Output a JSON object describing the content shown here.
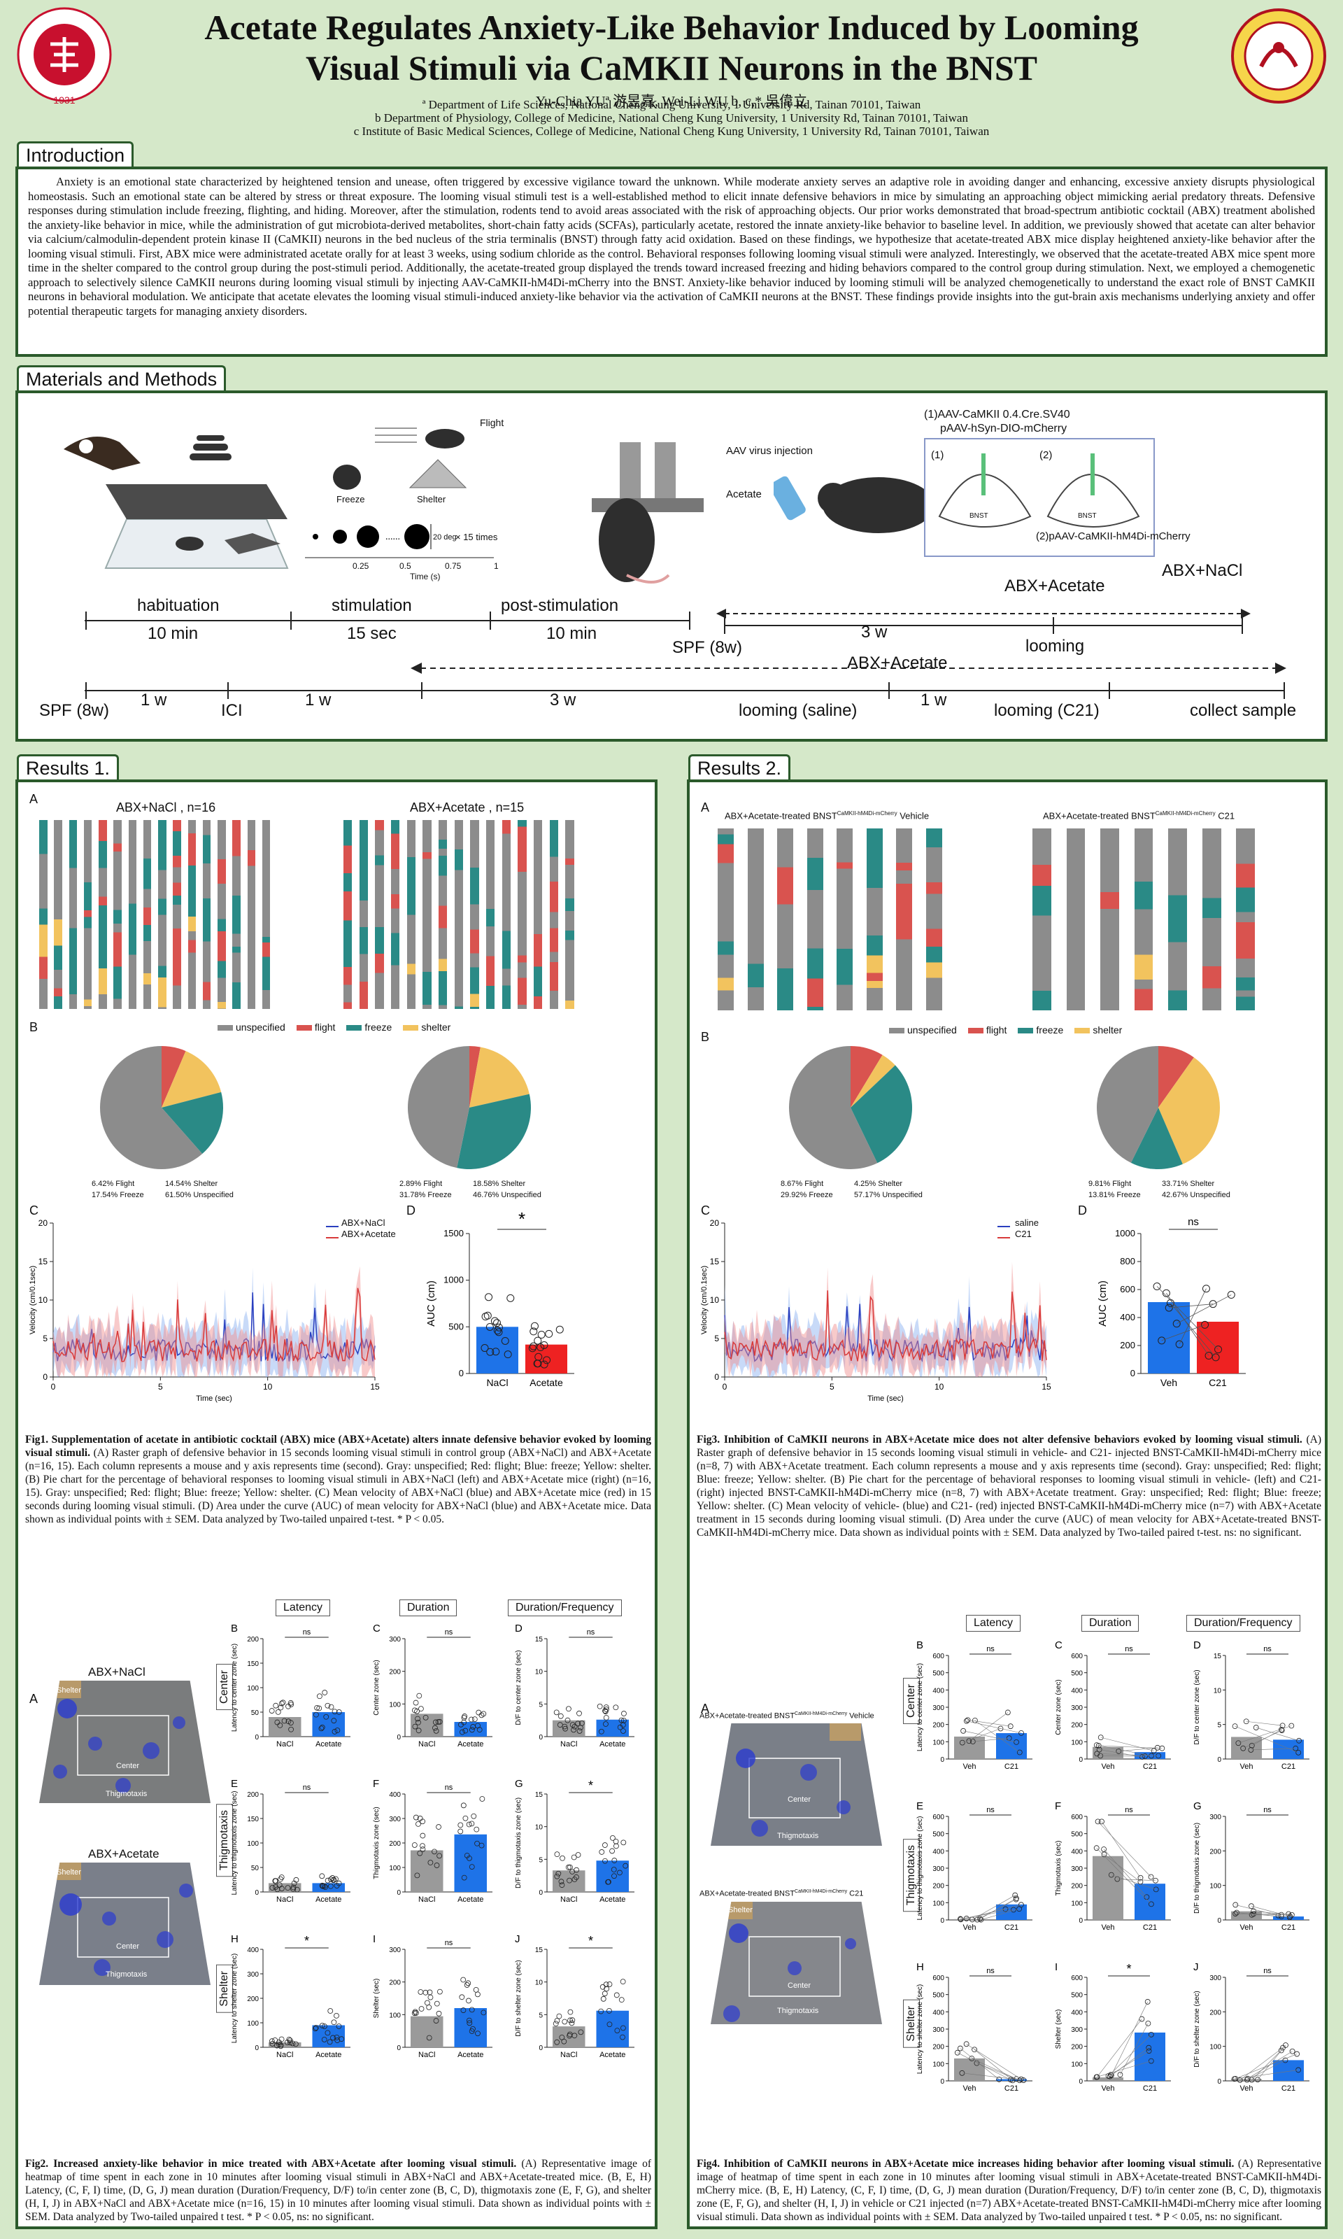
{
  "header": {
    "title_line1": "Acetate Regulates Anxiety-Like Behavior Induced by Looming",
    "title_line2": "Visual Stimuli via CaMKII Neurons in the BNST",
    "authors": "Yu-Chia YUª 游昱嘉, Wei-Li WU b, c,* 吳偉立",
    "affiliations": [
      "ª Department of Life Sciences, National Cheng Kung University, 1 University Rd, Tainan 70101, Taiwan",
      "b Department of Physiology, College of Medicine, National Cheng Kung University, 1 University Rd, Tainan 70101, Taiwan",
      "c Institute of Basic Medical Sciences, College of Medicine, National Cheng Kung University, 1 University Rd, Tainan 70101, Taiwan"
    ],
    "logo_left_text": "NATIONAL CHENG KUNG UNIVERSITY 1931",
    "logo_right_text": "COLLEGE OF MEDICINE 1983"
  },
  "intro": {
    "heading": "Introduction",
    "body": "Anxiety is an emotional state characterized by heightened tension and unease, often triggered by excessive vigilance toward the unknown. While moderate anxiety serves an adaptive role in avoiding danger and enhancing, excessive anxiety disrupts physiological homeostasis. Such an emotional state can be altered by stress or threat exposure. The looming visual stimuli test is a well-established method to elicit innate defensive behaviors in mice by simulating an approaching object mimicking aerial predatory threats. Defensive responses during stimulation include freezing, flighting, and hiding. Moreover, after the stimulation, rodents tend to avoid areas associated with the risk of approaching objects. Our prior works demonstrated that broad-spectrum antibiotic cocktail (ABX) treatment abolished the anxiety-like behavior in mice, while the administration of gut microbiota-derived metabolites, short-chain fatty acids (SCFAs), particularly acetate, restored the innate anxiety-like behavior to baseline level. In addition, we previously showed that acetate can alter behavior via calcium/calmodulin-dependent protein kinase II (CaMKII) neurons in the bed nucleus of the stria terminalis (BNST) through fatty acid oxidation. Based on these findings, we hypothesize that acetate-treated ABX mice display heightened anxiety-like behavior after the looming visual stimuli. First, ABX mice were administrated acetate orally for at least 3 weeks, using sodium chloride as the control. Behavioral responses following looming visual stimuli were analyzed. Interestingly, we observed that the acetate-treated ABX mice spent more time in the shelter compared to the control group during the post-stimuli period. Additionally, the acetate-treated group displayed the trends toward increased freezing and hiding behaviors compared to the control group during stimulation. Next, we employed a chemogenetic approach to selectively silence CaMKII neurons during looming visual stimuli by injecting AAV-CaMKII-hM4Di-mCherry into the BNST. Anxiety-like behavior induced by looming stimuli will be analyzed chemogenetically to understand the exact role of BNST CaMKII neurons in behavioral modulation. We anticipate that acetate elevates the looming visual stimuli-induced anxiety-like behavior via the activation of CaMKII neurons at the BNST. These findings provide insights into the gut-brain axis mechanisms underlying anxiety and offer potential therapeutic targets for managing anxiety disorders."
  },
  "methods": {
    "heading": "Materials and Methods",
    "flight": "Flight",
    "freeze": "Freeze",
    "shelter": "Shelter",
    "times": "× 15 times",
    "size": "20 deg",
    "time_axis": "Time (s)",
    "ticks": [
      "0.25",
      "0.5",
      "0.75",
      "1"
    ],
    "virus1": "(1)AAV-CaMKII 0.4.Cre.SV40",
    "virus1b": "pAAV-hSyn-DIO-mCherry",
    "virus2": "(2)pAAV-CaMKII-hM4Di-mCherry",
    "aav": "AAV virus injection",
    "acetate": "Acetate",
    "one": "(1)",
    "two": "(2)",
    "bnst": "BNST",
    "habituation": "habituation",
    "habituation_t": "10 min",
    "stimulation": "stimulation",
    "stimulation_t": "15 sec",
    "post": "post-stimulation",
    "post_t": "10 min",
    "abx_acetate": "ABX+Acetate",
    "abx_nacl": "ABX+NaCl",
    "spf": "SPF (8w)",
    "three_w": "3 w",
    "looming": "looming",
    "spf2": "SPF (8w)",
    "w1": "1 w",
    "ici": "ICI",
    "w1b": "1 w",
    "w3b": "3 w",
    "abx_acetate2": "ABX+Acetate",
    "looming_saline": "looming (saline)",
    "w1c": "1 w",
    "looming_c21": "looming (C21)",
    "collect": "collect sample"
  },
  "results1": {
    "heading": "Results 1.",
    "A": "A",
    "B": "B",
    "C": "C",
    "D": "D",
    "group1": "ABX+NaCl , n=16",
    "group2": "ABX+Acetate , n=15",
    "legend": [
      "unspecified",
      "flight",
      "freeze",
      "shelter"
    ],
    "pie1": {
      "flight": "6.42% Flight",
      "shelter": "14.54% Shelter",
      "freeze": "17.54% Freeze",
      "unspecified": "61.50% Unspecified"
    },
    "pie2": {
      "flight": "2.89% Flight",
      "shelter": "18.58% Shelter",
      "freeze": "31.78% Freeze",
      "unspecified": "46.76% Unspecified"
    },
    "vel_legend1": "ABX+NaCl",
    "vel_legend2": "ABX+Acetate",
    "vel_ylabel": "Velocity (cm/0.1sec)",
    "vel_xlabel": "Time (sec)",
    "vel_yticks": [
      "0",
      "5",
      "10",
      "15",
      "20"
    ],
    "vel_xticks": [
      "0",
      "5",
      "10",
      "15"
    ],
    "auc_ylabel": "AUC (cm)",
    "auc_yticks": [
      "0",
      "500",
      "1000",
      "1500"
    ],
    "auc_x": [
      "NaCl",
      "Acetate"
    ],
    "auc_sig": "*",
    "fig1_caption_bold": "Fig1. Supplementation of acetate in antibiotic cocktail (ABX) mice (ABX+Acetate) alters innate defensive behavior evoked by looming visual stimuli.",
    "fig1_caption": "(A) Raster graph of defensive behavior in 15 seconds looming visual stimuli in control group (ABX+NaCl) and ABX+Acetate (n=16, 15). Each column represents a mouse and y axis represents time (second). Gray: unspecified; Red: flight; Blue: freeze; Yellow: shelter. (B) Pie chart for the percentage of behavioral responses to looming visual stimuli in ABX+NaCl (left) and ABX+Acetate mice (right) (n=16, 15). Gray: unspecified; Red: flight; Blue: freeze; Yellow: shelter. (C) Mean velocity of ABX+NaCl (blue) and ABX+Acetate mice (red) in 15 seconds during looming visual stimuli. (D) Area under the curve (AUC) of mean velocity for ABX+NaCl (blue) and ABX+Acetate mice. Data shown as individual points with ± SEM. Data analyzed by Two-tailed unpaired t-test. * P < 0.05.",
    "fig2_A": "A",
    "heat1": "ABX+NaCl",
    "heat2": "ABX+Acetate",
    "zone_shelter": "Shelter",
    "zone_center": "Center",
    "zone_thig": "Thigmotaxis",
    "col_latency": "Latency",
    "col_duration": "Duration",
    "col_df": "Duration/Frequency",
    "row_center": "Center",
    "row_thig": "Thigmotaxis",
    "row_shelter": "Shelter",
    "fig2_caption_bold": "Fig2. Increased anxiety-like behavior in mice treated with ABX+Acetate after looming visual stimuli.",
    "fig2_caption": "(A) Representative image of heatmap of time spent in each zone in 10 minutes after looming visual stimuli in ABX+NaCl and ABX+Acetate-treated mice. (B, E, H) Latency, (C, F, I) time, (D, G, J) mean duration (Duration/Frequency, D/F) to/in center zone (B, C, D), thigmotaxis zone (E, F, G), and shelter (H, I, J) in ABX+NaCl and ABX+Acetate mice (n=16, 15) in 10 minutes after looming visual stimuli. Data shown as individual points with ± SEM. Data analyzed by Two-tailed unpaired t test. * P < 0.05, ns: no significant."
  },
  "fig2_panels": [
    {
      "letter": "B",
      "ylabel": "Latency to center zone (sec)",
      "yticks": [
        "0",
        "50",
        "100",
        "150",
        "200"
      ],
      "sig": "ns",
      "x": [
        "NaCl",
        "Acetate"
      ],
      "values": [
        40,
        50
      ]
    },
    {
      "letter": "C",
      "ylabel": "Center zone (sec)",
      "yticks": [
        "0",
        "100",
        "200",
        "300"
      ],
      "sig": "ns",
      "x": [
        "NaCl",
        "Acetate"
      ],
      "values": [
        70,
        45
      ]
    },
    {
      "letter": "D",
      "ylabel": "D/F to center zone (sec)",
      "yticks": [
        "0",
        "5",
        "10",
        "15"
      ],
      "sig": "ns",
      "x": [
        "NaCl",
        "Acetate"
      ],
      "values": [
        2.5,
        2.6
      ]
    },
    {
      "letter": "E",
      "ylabel": "Latency to thigmotaxis zone (sec)",
      "yticks": [
        "0",
        "50",
        "100",
        "150",
        "200"
      ],
      "sig": "ns",
      "x": [
        "NaCl",
        "Acetate"
      ],
      "values": [
        18,
        18
      ]
    },
    {
      "letter": "F",
      "ylabel": "Thigmotaxis zone (sec)",
      "yticks": [
        "0",
        "100",
        "200",
        "300",
        "400"
      ],
      "sig": "ns",
      "x": [
        "NaCl",
        "Acetate"
      ],
      "values": [
        170,
        235
      ]
    },
    {
      "letter": "G",
      "ylabel": "D/F to thigmotaxis zone (sec)",
      "yticks": [
        "0",
        "5",
        "10",
        "15"
      ],
      "sig": "*",
      "x": [
        "NaCl",
        "Acetate"
      ],
      "values": [
        3.3,
        4.8
      ]
    },
    {
      "letter": "H",
      "ylabel": "Latency to shelter zone (sec)",
      "yticks": [
        "0",
        "100",
        "200",
        "300",
        "400"
      ],
      "sig": "*",
      "x": [
        "NaCl",
        "Acetate"
      ],
      "values": [
        20,
        90
      ]
    },
    {
      "letter": "I",
      "ylabel": "Shelter (sec)",
      "yticks": [
        "0",
        "100",
        "200",
        "300"
      ],
      "sig": "ns",
      "x": [
        "NaCl",
        "Acetate"
      ],
      "values": [
        95,
        120
      ]
    },
    {
      "letter": "J",
      "ylabel": "D/F to shelter zone (sec)",
      "yticks": [
        "0",
        "5",
        "10",
        "15"
      ],
      "sig": "*",
      "x": [
        "NaCl",
        "Acetate"
      ],
      "values": [
        3.2,
        5.6
      ]
    }
  ],
  "results2": {
    "heading": "Results 2.",
    "A": "A",
    "B": "B",
    "C": "C",
    "D": "D",
    "group1": "ABX+Acetate-treated BNST",
    "group1_sup": "CaMKII-hM4Di-mCherry",
    "group1_tail": "Vehicle",
    "group2": "ABX+Acetate-treated BNST",
    "group2_sup": "CaMKII-hM4Di-mCherry",
    "group2_tail": "C21",
    "legend": [
      "unspecified",
      "flight",
      "freeze",
      "shelter"
    ],
    "pie1": {
      "flight": "8.67% Flight",
      "shelter": "4.25% Shelter",
      "freeze": "29.92% Freeze",
      "unspecified": "57.17% Unspecified"
    },
    "pie2": {
      "flight": "9.81% Flight",
      "shelter": "33.71% Shelter",
      "freeze": "13.81% Freeze",
      "unspecified": "42.67% Unspecified"
    },
    "vel_legend1": "saline",
    "vel_legend2": "C21",
    "vel_ylabel": "Velocity (cm/0.1sec)",
    "vel_xlabel": "Time (sec)",
    "vel_yticks": [
      "0",
      "5",
      "10",
      "15",
      "20"
    ],
    "vel_xticks": [
      "0",
      "5",
      "10",
      "15"
    ],
    "auc_ylabel": "AUC (cm)",
    "auc_yticks": [
      "0",
      "200",
      "400",
      "600",
      "800",
      "1000"
    ],
    "auc_x": [
      "Veh",
      "C21"
    ],
    "auc_sig": "ns",
    "fig3_caption_bold": "Fig3. Inhibition of CaMKII neurons in ABX+Acetate mice does not alter defensive behaviors evoked by looming visual stimuli.",
    "fig3_caption": "(A) Raster graph of defensive behavior in 15 seconds looming visual stimuli in vehicle- and C21- injected BNST-CaMKII-hM4Di-mCherry mice (n=8, 7) with ABX+Acetate treatment. Each column represents a mouse and y axis represents time (second). Gray: unspecified; Red: flight; Blue: freeze; Yellow: shelter. (B) Pie chart for the percentage of behavioral responses to looming visual stimuli in vehicle- (left) and C21- (right) injected BNST-CaMKII-hM4Di-mCherry mice (n=8, 7) with ABX+Acetate treatment. Gray: unspecified; Red: flight; Blue: freeze; Yellow: shelter. (C) Mean velocity of vehicle- (blue) and C21- (red) injected BNST-CaMKII-hM4Di-mCherry mice (n=7) with ABX+Acetate treatment in 15 seconds during looming visual stimuli. (D) Area under the curve (AUC) of mean velocity for ABX+Acetate-treated BNST-CaMKII-hM4Di-mCherry mice. Data shown as individual points with ± SEM. Data analyzed by Two-tailed paired t-test. ns: no significant.",
    "fig4_A": "A",
    "heat1": "ABX+Acetate-treated BNST",
    "heat1_sup": "CaMKII-hM4Di-mCherry",
    "heat1_tail": "Vehicle",
    "heat2": "ABX+Acetate-treated BNST",
    "heat2_sup": "CaMKII-hM4Di-mCherry",
    "heat2_tail": "C21",
    "zone_shelter": "Shelter",
    "zone_center": "Center",
    "zone_thig": "Thigmotaxis",
    "col_latency": "Latency",
    "col_duration": "Duration",
    "col_df": "Duration/Frequency",
    "row_center": "Center",
    "row_thig": "Thigmotaxis",
    "row_shelter": "Shelter",
    "fig4_caption_bold": "Fig4. Inhibition of CaMKII neurons in ABX+Acetate mice increases hiding behavior after looming visual stimuli.",
    "fig4_caption": "(A) Representative image of heatmap of time spent in each zone in 10 minutes after looming visual stimuli in ABX+Acetate-treated BNST-CaMKII-hM4Di-mCherry mice. (B, E, H) Latency, (C, F, I) time, (D, G, J) mean duration (Duration/Frequency, D/F) to/in center zone (B, C, D), thigmotaxis zone (E, F, G), and shelter (H, I, J) in vehicle or C21 injected (n=7) ABX+Acetate-treated BNST-CaMKII-hM4Di-mCherry mice after looming visual stimuli. Data shown as individual points with ± SEM. Data analyzed by Two-tailed unpaired t test. * P < 0.05, ns: no significant."
  },
  "fig4_panels": [
    {
      "letter": "B",
      "ylabel": "Latency to center zone (sec)",
      "yticks": [
        "0",
        "100",
        "200",
        "300",
        "400",
        "500",
        "600"
      ],
      "sig": "ns",
      "x": [
        "Veh",
        "C21"
      ],
      "values": [
        130,
        150
      ]
    },
    {
      "letter": "C",
      "ylabel": "Center zone (sec)",
      "yticks": [
        "0",
        "100",
        "200",
        "300",
        "400",
        "500",
        "600"
      ],
      "sig": "ns",
      "x": [
        "Veh",
        "C21"
      ],
      "values": [
        70,
        40
      ]
    },
    {
      "letter": "D",
      "ylabel": "D/F to center zone (sec)",
      "yticks": [
        "0",
        "5",
        "10",
        "15"
      ],
      "sig": "ns",
      "x": [
        "Veh",
        "C21"
      ],
      "values": [
        3.2,
        2.8
      ]
    },
    {
      "letter": "E",
      "ylabel": "Latency to thigmotaxis zone (sec)",
      "yticks": [
        "0",
        "100",
        "200",
        "300",
        "400",
        "500",
        "600"
      ],
      "sig": "ns",
      "x": [
        "Veh",
        "C21"
      ],
      "values": [
        5,
        90
      ]
    },
    {
      "letter": "F",
      "ylabel": "Thigmotaxis (sec)",
      "yticks": [
        "0",
        "100",
        "200",
        "300",
        "400",
        "500",
        "600"
      ],
      "sig": "ns",
      "x": [
        "Veh",
        "C21"
      ],
      "values": [
        370,
        210
      ]
    },
    {
      "letter": "G",
      "ylabel": "D/F to thigmotaxis zone (sec)",
      "yticks": [
        "0",
        "100",
        "200",
        "300"
      ],
      "sig": "ns",
      "x": [
        "Veh",
        "C21"
      ],
      "values": [
        25,
        10
      ]
    },
    {
      "letter": "H",
      "ylabel": "Latency to shelter zone (sec)",
      "yticks": [
        "0",
        "100",
        "200",
        "300",
        "400",
        "500",
        "600"
      ],
      "sig": "ns",
      "x": [
        "Veh",
        "C21"
      ],
      "values": [
        130,
        10
      ]
    },
    {
      "letter": "I",
      "ylabel": "Shelter (sec)",
      "yticks": [
        "0",
        "100",
        "200",
        "300",
        "400",
        "500",
        "600"
      ],
      "sig": "*",
      "x": [
        "Veh",
        "C21"
      ],
      "values": [
        20,
        280
      ]
    },
    {
      "letter": "J",
      "ylabel": "D/F to shelter zone (sec)",
      "yticks": [
        "0",
        "100",
        "200",
        "300"
      ],
      "sig": "ns",
      "x": [
        "Veh",
        "C21"
      ],
      "values": [
        5,
        60
      ]
    }
  ],
  "chart_data": [
    {
      "type": "pie",
      "title": "ABX+NaCl , n=16",
      "categories": [
        "Flight",
        "Shelter",
        "Freeze",
        "Unspecified"
      ],
      "values": [
        6.42,
        14.54,
        17.54,
        61.5
      ]
    },
    {
      "type": "pie",
      "title": "ABX+Acetate , n=15",
      "categories": [
        "Flight",
        "Shelter",
        "Freeze",
        "Unspecified"
      ],
      "values": [
        2.89,
        18.58,
        31.78,
        46.76
      ]
    },
    {
      "type": "bar",
      "categories": [
        "NaCl",
        "Acetate"
      ],
      "values": [
        500,
        310
      ],
      "ylabel": "AUC (cm)",
      "ylim": [
        0,
        1500
      ]
    },
    {
      "type": "pie",
      "categories": [
        "Flight",
        "Shelter",
        "Freeze",
        "Unspecified"
      ],
      "values": [
        8.67,
        4.25,
        29.92,
        57.17
      ]
    },
    {
      "type": "pie",
      "categories": [
        "Flight",
        "Shelter",
        "Freeze",
        "Unspecified"
      ],
      "values": [
        9.81,
        33.71,
        13.81,
        42.67
      ]
    },
    {
      "type": "bar",
      "categories": [
        "Veh",
        "C21"
      ],
      "values": [
        510,
        370
      ],
      "ylabel": "AUC (cm)",
      "ylim": [
        0,
        1000
      ]
    }
  ],
  "colors": {
    "unspecified": "#8c8c8c",
    "flight": "#d9534f",
    "freeze": "#2a8a86",
    "shelter": "#f2c35e",
    "nacl": "#1e73e8",
    "acetate": "#ee2222",
    "veh": "#1e73e8",
    "c21": "#ee2222",
    "gray_bar": "#9a9a9a"
  }
}
